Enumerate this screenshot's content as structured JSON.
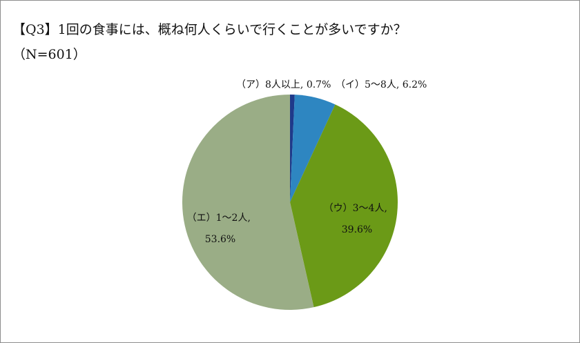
{
  "chart_data": {
    "type": "pie",
    "title": "【Q3】1回の食事には、概ね何人くらいで行くことが多いですか？",
    "subtitle": "（N=601）",
    "slices": [
      {
        "label": "（ア）8人以上",
        "value": 0.7,
        "value_text": "0.7%",
        "color": "#1f3a8a"
      },
      {
        "label": "（イ）5～8人",
        "value": 6.2,
        "value_text": "6.2%",
        "color": "#2e86c1"
      },
      {
        "label": "（ウ）3～4人",
        "value": 39.6,
        "value_text": "39.6%",
        "color": "#6b9a17"
      },
      {
        "label": "（エ）1～2人",
        "value": 53.6,
        "value_text": "53.6%",
        "color": "#9aad86"
      }
    ],
    "start_angle": "12 o'clock",
    "direction": "clockwise",
    "legend": "none"
  }
}
